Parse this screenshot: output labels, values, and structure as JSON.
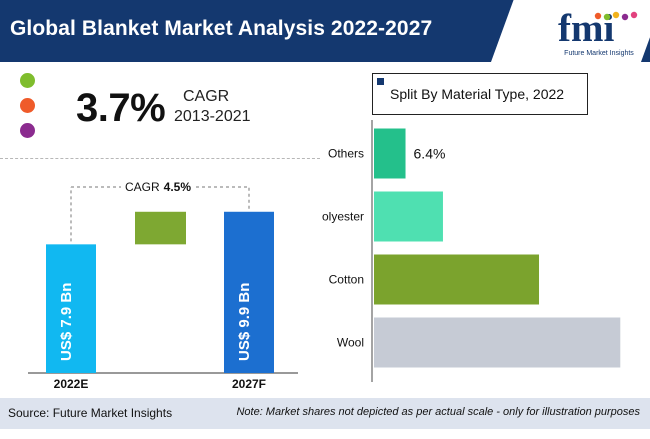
{
  "header": {
    "title": "Global Blanket Market Analysis 2022-2027",
    "logo_text": "fmi",
    "logo_subtitle": "Future Market Insights"
  },
  "summary": {
    "cagr_value": "3.7%",
    "cagr_label": "CAGR",
    "cagr_period": "2013-2021",
    "dot_colors": [
      "#7fbd2d",
      "#ef5b2a",
      "#8b2b8f"
    ]
  },
  "growth_chart": {
    "cagr_prefix": "CAGR",
    "cagr_value": "4.5%"
  },
  "split": {
    "title": "Split By Material Type, 2022"
  },
  "chart_data": [
    {
      "type": "bar",
      "orientation": "vertical",
      "categories": [
        "2022E",
        "2027F"
      ],
      "values": [
        7.9,
        9.9
      ],
      "value_labels": [
        "US$ 7.9 Bn",
        "US$ 9.9 Bn"
      ],
      "ylim": [
        0,
        10.5
      ],
      "grid": false,
      "colors": [
        "#11b8f1",
        "#1c6fd0"
      ],
      "bridge": {
        "color": "#7ea832",
        "from": 7.9,
        "to": 9.9
      },
      "annotation": "CAGR 4.5%"
    },
    {
      "type": "bar",
      "orientation": "horizontal",
      "title": "Split By Material Type, 2022",
      "categories": [
        "Others",
        "Polyester",
        "Cotton",
        "Wool"
      ],
      "values": [
        6.4,
        14.0,
        33.5,
        50.0
      ],
      "value_labels": [
        "6.4%",
        "",
        "",
        ""
      ],
      "xlim": [
        0,
        54
      ],
      "grid": false,
      "colors": [
        "#24c08b",
        "#4fe0b1",
        "#7ba32d",
        "#c6cbd5"
      ]
    }
  ],
  "footer": {
    "source": "Source: Future Market Insights",
    "note": "Note: Market shares not depicted as per actual scale - only for illustration purposes"
  },
  "colors": {
    "header_bg": "#14386f",
    "footer_bg": "#dde3ee",
    "text_dark": "#111111"
  },
  "icons": {
    "logo": "fmi-logo",
    "split_title_marker": "square-marker"
  }
}
